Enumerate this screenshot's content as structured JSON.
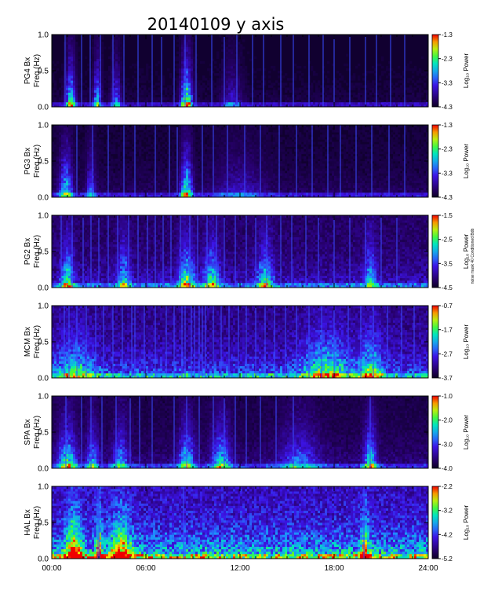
{
  "title": "20140109 y axis",
  "side_note": "noise mask 40 Conditioned Bdb",
  "chart_data": [
    {
      "type": "heatmap",
      "station_label": "PG4 Bx",
      "ylabel": "Freq (Hz)",
      "ylim": [
        0,
        1
      ],
      "yticks": [
        "0.0",
        "0.5",
        "1.0"
      ],
      "colorbar": {
        "ticks": [
          "-1.3",
          "-2.3",
          "-3.3",
          "-4.3"
        ],
        "min": -4.3,
        "max": -1.3,
        "label": "Log₁₀ Power"
      },
      "background_level": 0.05,
      "bursts": [
        {
          "t": 1.2,
          "level": 0.7,
          "width": 0.3
        },
        {
          "t": 2.9,
          "level": 0.55,
          "width": 0.25
        },
        {
          "t": 4.1,
          "level": 0.4,
          "width": 0.3
        },
        {
          "t": 8.6,
          "level": 0.85,
          "width": 0.35
        },
        {
          "t": 11.5,
          "level": 0.25,
          "width": 0.6
        }
      ],
      "spikes": [
        0.85,
        1.9,
        2.45,
        3.1,
        3.9,
        4.6,
        5.5,
        6.4,
        7.0,
        7.8,
        8.5,
        9.2,
        10.2,
        11.0,
        11.8,
        12.8,
        13.5,
        14.6,
        15.4,
        16.4,
        17.3,
        18.0,
        19.0,
        20.0,
        20.7,
        21.6,
        22.5
      ]
    },
    {
      "type": "heatmap",
      "station_label": "PG3 Bx",
      "ylabel": "Freq (Hz)",
      "ylim": [
        0,
        1
      ],
      "yticks": [
        "0.0",
        "0.5",
        "1.0"
      ],
      "colorbar": {
        "ticks": [
          "-1.3",
          "-2.3",
          "-3.3",
          "-4.3"
        ],
        "min": -4.3,
        "max": -1.3,
        "label": "Log₁₀ Power"
      },
      "background_level": 0.08,
      "bursts": [
        {
          "t": 0.9,
          "level": 0.6,
          "width": 0.4
        },
        {
          "t": 2.5,
          "level": 0.35,
          "width": 0.3
        },
        {
          "t": 8.6,
          "level": 0.75,
          "width": 0.35
        },
        {
          "t": 12,
          "level": 0.2,
          "width": 1.5
        }
      ],
      "spikes": [
        1.6,
        2.6,
        3.6,
        4.6,
        5.3,
        6.6,
        7.5,
        8.0,
        9.6,
        10.3,
        11.2,
        12.3,
        13.3,
        14.5,
        15.6,
        16.6,
        17.6,
        18.4,
        19.4,
        20.4,
        21.5,
        22.5
      ]
    },
    {
      "type": "heatmap",
      "station_label": "PG2 Bx",
      "ylabel": "Freq (Hz)",
      "ylim": [
        0,
        1
      ],
      "yticks": [
        "0.0",
        "0.5",
        "1.0"
      ],
      "colorbar": {
        "ticks": [
          "-1.5",
          "-2.5",
          "-3.5",
          "-4.5"
        ],
        "min": -4.5,
        "max": -1.5,
        "label": "Log₁₀ Power"
      },
      "background_level": 0.2,
      "bursts": [
        {
          "t": 1.0,
          "level": 0.55,
          "width": 0.4
        },
        {
          "t": 4.6,
          "level": 0.45,
          "width": 0.4
        },
        {
          "t": 8.6,
          "level": 0.6,
          "width": 0.5
        },
        {
          "t": 10.2,
          "level": 0.55,
          "width": 0.5
        },
        {
          "t": 13.6,
          "level": 0.5,
          "width": 0.5
        },
        {
          "t": 20.3,
          "level": 0.45,
          "width": 0.4
        }
      ],
      "spikes": [
        0.6,
        1.3,
        2.0,
        2.5,
        3.0,
        3.6,
        4.2,
        4.9,
        5.5,
        6.1,
        6.6,
        7.1,
        7.6,
        8.2,
        8.8,
        9.3,
        9.9,
        10.5,
        11.0,
        11.7,
        12.4,
        13.0,
        13.7,
        14.6,
        15.3,
        16.2,
        17.0,
        18.0,
        19.0,
        20.0,
        21.0,
        22.0
      ]
    },
    {
      "type": "heatmap",
      "station_label": "MCM Bx",
      "ylabel": "Freq (Hz)",
      "ylim": [
        0,
        1
      ],
      "yticks": [
        "0.0",
        "0.5",
        "1.0"
      ],
      "colorbar": {
        "ticks": [
          "-0.7",
          "-1.7",
          "-2.7",
          "-3.7"
        ],
        "min": -3.7,
        "max": -0.7,
        "label": "Log₁₀ Power"
      },
      "background_level": 0.3,
      "bursts": [
        {
          "t": 1.5,
          "level": 0.35,
          "width": 1.2
        },
        {
          "t": 17.5,
          "level": 0.45,
          "width": 1.5
        },
        {
          "t": 20.3,
          "level": 0.45,
          "width": 0.8
        }
      ],
      "spikes": [
        0.8,
        1.1,
        1.6,
        2.2,
        2.8,
        3.3,
        3.9,
        4.5,
        5.1,
        5.3,
        5.9,
        6.6,
        7.3,
        7.8,
        8.3,
        8.5,
        8.9,
        9.1,
        9.4,
        9.6,
        9.8,
        10.3,
        10.8,
        11.3,
        11.9,
        12.4,
        13.0,
        13.6,
        14.2,
        14.9,
        15.6,
        16.4,
        17.2,
        18.0,
        18.9,
        19.7,
        20.5,
        21.4,
        22.3,
        23.1
      ]
    },
    {
      "type": "heatmap",
      "station_label": "SPA Bx",
      "ylabel": "Freq (Hz)",
      "ylim": [
        0,
        1
      ],
      "yticks": [
        "0.0",
        "0.5",
        "1.0"
      ],
      "colorbar": {
        "ticks": [
          "-1.0",
          "-2.0",
          "-3.0",
          "-4.0"
        ],
        "min": -4.0,
        "max": -1.0,
        "label": "Log₁₀ Power"
      },
      "background_level": 0.12,
      "bursts": [
        {
          "t": 1.0,
          "level": 0.6,
          "width": 0.6
        },
        {
          "t": 2.6,
          "level": 0.45,
          "width": 0.4
        },
        {
          "t": 4.4,
          "level": 0.45,
          "width": 0.5
        },
        {
          "t": 8.6,
          "level": 0.55,
          "width": 0.5
        },
        {
          "t": 10.8,
          "level": 0.55,
          "width": 0.6
        },
        {
          "t": 15.8,
          "level": 0.35,
          "width": 1.2
        },
        {
          "t": 20.3,
          "level": 0.6,
          "width": 0.4
        }
      ],
      "spikes": [
        0.9,
        1.9,
        2.5,
        3.2,
        4.1,
        5.0,
        5.6,
        6.4,
        7.8,
        8.6,
        9.4,
        10.3,
        11.0,
        11.7,
        12.4,
        13.3,
        14.3,
        15.4,
        20.3
      ]
    },
    {
      "type": "heatmap",
      "station_label": "HAL Bx",
      "ylabel": "Freq (Hz)",
      "ylim": [
        0,
        1
      ],
      "yticks": [
        "0.0",
        "0.5",
        "1.0"
      ],
      "colorbar": {
        "ticks": [
          "-2.2",
          "-3.2",
          "-4.2",
          "-5.2"
        ],
        "min": -5.2,
        "max": -2.2,
        "label": "Log₁₀ Power"
      },
      "background_level": 0.45,
      "bursts": [
        {
          "t": 1.4,
          "level": 0.75,
          "width": 0.5
        },
        {
          "t": 3.0,
          "level": 0.7,
          "width": 0.2
        },
        {
          "t": 4.4,
          "level": 0.6,
          "width": 0.7
        },
        {
          "t": 20,
          "level": 0.55,
          "width": 0.3
        }
      ],
      "spikes": [
        2.95,
        3.05,
        8.4,
        19.9
      ]
    }
  ],
  "xaxis": {
    "ticks": [
      "00:00",
      "06:00",
      "12:00",
      "18:00",
      "24:00"
    ],
    "xlim_hours": [
      0,
      24
    ]
  }
}
